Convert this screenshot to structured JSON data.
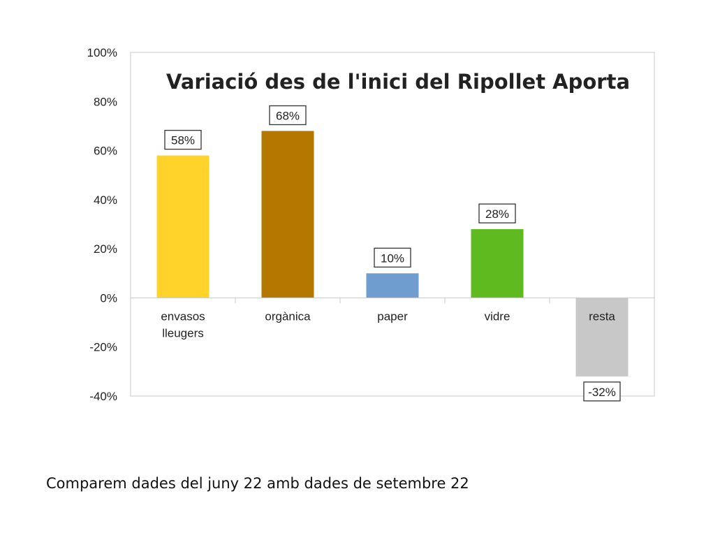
{
  "chart_data": {
    "type": "bar",
    "title": "Variació des de l'inici del Ripollet Aporta",
    "xlabel": "",
    "ylabel": "",
    "categories": [
      [
        "envasos",
        "lleugers"
      ],
      [
        "orgànica"
      ],
      [
        "paper"
      ],
      [
        "vidre"
      ],
      [
        "resta"
      ]
    ],
    "values": [
      58,
      68,
      10,
      28,
      -32
    ],
    "value_labels": [
      "58%",
      "68%",
      "10%",
      "28%",
      "-32%"
    ],
    "colors": [
      "#FFD32A",
      "#B47800",
      "#709DD0",
      "#5FBA1F",
      "#C8C8C8"
    ],
    "yticks": [
      {
        "value": 100,
        "label": "100%"
      },
      {
        "value": 80,
        "label": "80%"
      },
      {
        "value": 60,
        "label": "60%"
      },
      {
        "value": 40,
        "label": "40%"
      },
      {
        "value": 20,
        "label": "20%"
      },
      {
        "value": 0,
        "label": "0%"
      },
      {
        "value": -20,
        "label": "-20%"
      },
      {
        "value": -40,
        "label": "-40%"
      }
    ],
    "ylim": [
      -40,
      100
    ],
    "grid": false,
    "legend": "none"
  },
  "caption": "Comparem dades del juny 22 amb dades de setembre 22"
}
